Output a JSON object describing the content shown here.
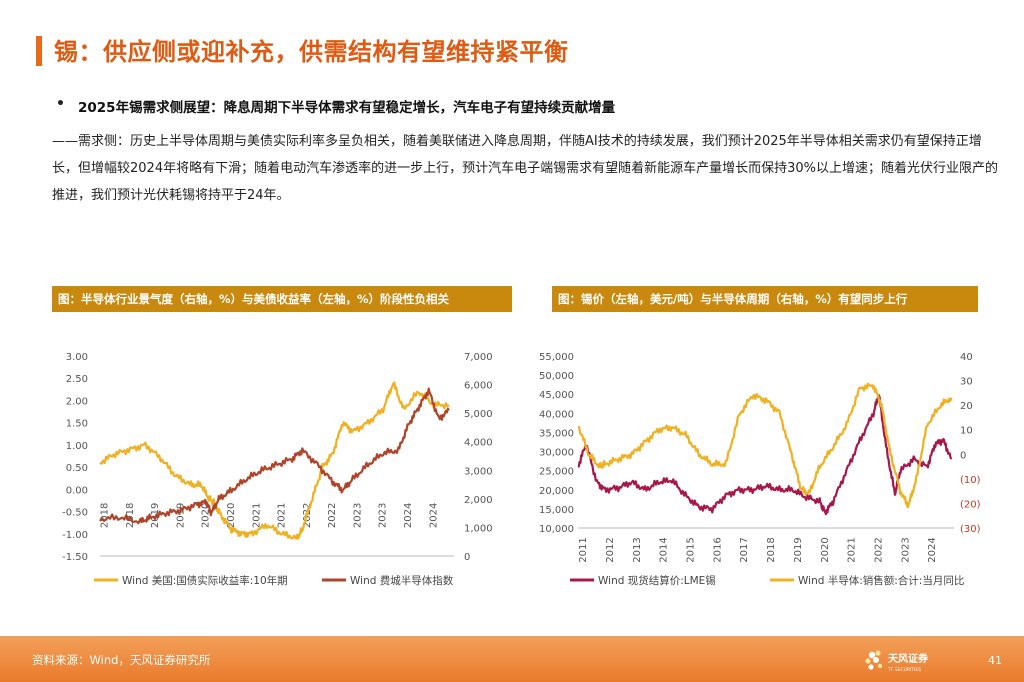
{
  "header": {
    "title": "锡：供应侧或迎补充，供需结构有望维持紧平衡",
    "bullet": "2025年锡需求侧展望：降息周期下半导体需求有望稳定增长，汽车电子有望持续贡献增量",
    "paragraph": "——需求侧：历史上半导体周期与美债实际利率多呈负相关，随着美联储进入降息周期，伴随AI技术的持续发展，我们预计2025年半导体相关需求仍有望保持正增长，但增幅较2024年将略有下滑；随着电动汽车渗透率的进一步上行，预计汽车电子端锡需求有望随着新能源车产量增长而保持30%以上增速；随着光伏行业限产的推进，我们预计光伏耗锡将持平于24年。"
  },
  "footer": {
    "source": "资料来源：Wind，天风证券研究所",
    "page": "41",
    "logo_text": "天风证券",
    "logo_sub": "TF SECURITIES"
  },
  "colors": {
    "accent": "#e86a1a",
    "gold": "#f0b020",
    "darkred": "#b0442a",
    "crimson": "#a8174a",
    "chartTitleBg": "#c9890f"
  },
  "chart_data": [
    {
      "type": "line",
      "title": "图：半导体行业景气度（右轴，%）与美债收益率（左轴，%）阶段性负相关",
      "x_ticks": [
        "2018",
        "2018",
        "2019",
        "2019",
        "2020",
        "2020",
        "2021",
        "2021",
        "2022",
        "2022",
        "2023",
        "2023",
        "2024",
        "2024"
      ],
      "y_left": {
        "ticks": [
          "3.00",
          "2.50",
          "2.00",
          "1.50",
          "1.00",
          "0.50",
          "0.00",
          "-0.50",
          "-1.00",
          "-1.50"
        ],
        "range": [
          -1.5,
          3.0
        ]
      },
      "y_right": {
        "ticks": [
          "7,000",
          "6,000",
          "5,000",
          "4,000",
          "3,000",
          "2,000",
          "1,000",
          "0"
        ],
        "range": [
          0,
          7000
        ]
      },
      "series": [
        {
          "name": "Wind 美国:国债实际收益率:10年期",
          "axis": "left",
          "color": "#f0b020",
          "x": [
            2018.0,
            2018.3,
            2018.6,
            2018.9,
            2019.2,
            2019.5,
            2019.8,
            2020.0,
            2020.15,
            2020.25,
            2020.4,
            2020.6,
            2020.8,
            2021.0,
            2021.3,
            2021.6,
            2021.9,
            2022.0,
            2022.2,
            2022.4,
            2022.6,
            2022.8,
            2023.0,
            2023.3,
            2023.6,
            2023.8,
            2024.0,
            2024.3,
            2024.6,
            2024.9
          ],
          "y": [
            0.6,
            0.8,
            0.9,
            1.0,
            0.7,
            0.3,
            0.1,
            0.1,
            -0.2,
            -0.3,
            -0.6,
            -0.9,
            -1.0,
            -1.0,
            -0.8,
            -1.0,
            -1.1,
            -0.9,
            -0.2,
            0.5,
            0.8,
            1.5,
            1.3,
            1.5,
            1.8,
            2.4,
            1.8,
            2.2,
            1.9,
            1.9
          ]
        },
        {
          "name": "Wind 费城半导体指数",
          "axis": "right",
          "color": "#b0442a",
          "x": [
            2018.0,
            2018.4,
            2018.8,
            2019.0,
            2019.3,
            2019.6,
            2019.9,
            2020.1,
            2020.2,
            2020.35,
            2020.6,
            2020.9,
            2021.2,
            2021.5,
            2021.8,
            2022.0,
            2022.3,
            2022.6,
            2022.8,
            2023.0,
            2023.3,
            2023.6,
            2023.9,
            2024.1,
            2024.3,
            2024.5,
            2024.7,
            2024.9
          ],
          "y": [
            1300,
            1350,
            1200,
            1350,
            1500,
            1600,
            1800,
            1900,
            1500,
            2000,
            2300,
            2700,
            3000,
            3200,
            3400,
            3700,
            3200,
            2600,
            2300,
            2700,
            3200,
            3600,
            3700,
            4600,
            5200,
            5800,
            4800,
            5100
          ]
        }
      ],
      "legend": "bottom"
    },
    {
      "type": "line",
      "title": "图：锡价（左轴，美元/吨）与半导体周期（右轴，%）有望同步上行",
      "x_ticks": [
        "2011",
        "2012",
        "2013",
        "2014",
        "2015",
        "2016",
        "2017",
        "2018",
        "2019",
        "2020",
        "2021",
        "2022",
        "2023",
        "2024"
      ],
      "y_left": {
        "ticks": [
          "55,000",
          "50,000",
          "45,000",
          "40,000",
          "35,000",
          "30,000",
          "25,000",
          "20,000",
          "15,000",
          "10,000"
        ],
        "range": [
          10000,
          55000
        ]
      },
      "y_right": {
        "ticks": [
          "40",
          "30",
          "20",
          "10",
          "0",
          "(10)",
          "(20)",
          "(30)"
        ],
        "range": [
          -30,
          40
        ]
      },
      "series": [
        {
          "name": "Wind 现货结算价:LME锡",
          "axis": "left",
          "color": "#a8174a",
          "x": [
            2011.0,
            2011.3,
            2011.7,
            2012.0,
            2012.5,
            2013.0,
            2013.5,
            2014.0,
            2014.5,
            2015.0,
            2015.5,
            2016.0,
            2016.5,
            2017.0,
            2017.5,
            2018.0,
            2018.5,
            2019.0,
            2019.5,
            2020.0,
            2020.2,
            2020.5,
            2021.0,
            2021.5,
            2022.0,
            2022.2,
            2022.5,
            2022.8,
            2023.0,
            2023.5,
            2024.0,
            2024.3,
            2024.6,
            2024.9
          ],
          "y": [
            26000,
            32000,
            22000,
            20000,
            20500,
            22000,
            20000,
            22000,
            22500,
            18500,
            15500,
            15000,
            18500,
            20000,
            20000,
            21000,
            20000,
            20000,
            18000,
            17000,
            14000,
            17000,
            25000,
            33000,
            40000,
            45000,
            30000,
            19000,
            25000,
            28000,
            26000,
            32000,
            33000,
            28000
          ]
        },
        {
          "name": "Wind 半导体:销售额:合计:当月同比",
          "axis": "right",
          "color": "#f0b020",
          "x": [
            2011.0,
            2011.4,
            2011.8,
            2012.0,
            2012.5,
            2013.0,
            2013.5,
            2014.0,
            2014.5,
            2015.0,
            2015.5,
            2016.0,
            2016.5,
            2017.0,
            2017.5,
            2018.0,
            2018.5,
            2019.0,
            2019.3,
            2019.6,
            2020.0,
            2020.5,
            2021.0,
            2021.5,
            2022.0,
            2022.3,
            2022.6,
            2023.0,
            2023.3,
            2023.6,
            2024.0,
            2024.5,
            2024.9
          ],
          "y": [
            12,
            0,
            -5,
            -4,
            -2,
            0,
            5,
            10,
            11,
            8,
            0,
            -4,
            -4,
            16,
            24,
            22,
            17,
            -2,
            -14,
            -16,
            -5,
            3,
            12,
            27,
            28,
            20,
            2,
            -15,
            -21,
            -10,
            12,
            20,
            23
          ]
        }
      ],
      "legend": "bottom"
    }
  ],
  "legends": [
    [
      "Wind 美国:国债实际收益率:10年期",
      "Wind 费城半导体指数"
    ],
    [
      "Wind 现货结算价:LME锡",
      "Wind 半导体:销售额:合计:当月同比"
    ]
  ]
}
